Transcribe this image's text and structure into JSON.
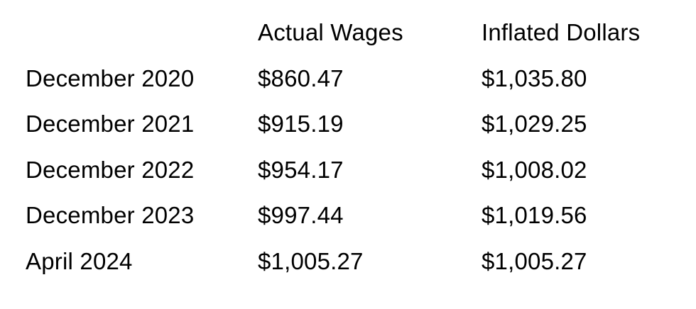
{
  "chart_data": {
    "type": "table",
    "title": "",
    "columns": [
      "",
      "Actual Wages",
      "Inflated Dollars"
    ],
    "rows": [
      [
        "December 2020",
        "$860.47",
        "$1,035.80"
      ],
      [
        "December 2021",
        "$915.19",
        "$1,029.25"
      ],
      [
        "December 2022",
        "$954.17",
        "$1,008.02"
      ],
      [
        "December 2023",
        "$997.44",
        "$1,019.56"
      ],
      [
        "April 2024",
        "$1,005.27",
        "$1,005.27"
      ]
    ],
    "colors": {
      "text": "#000000",
      "background": "#ffffff"
    }
  }
}
